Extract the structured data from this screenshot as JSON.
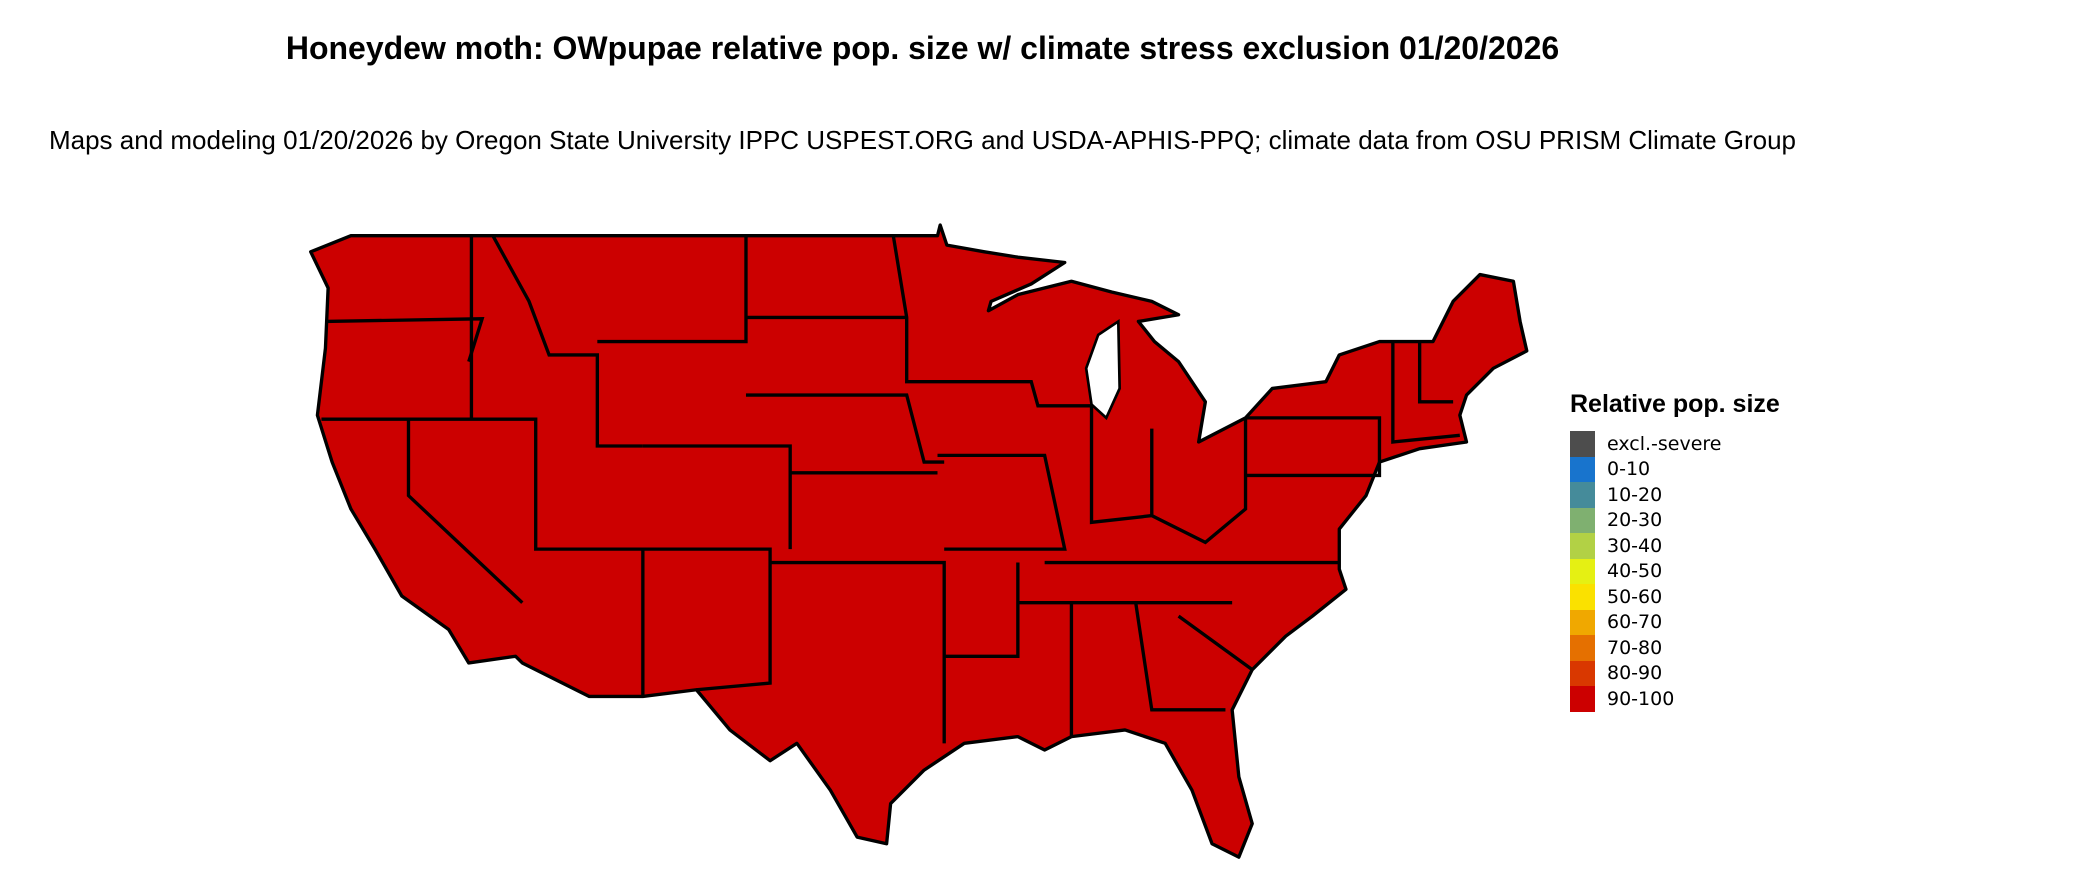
{
  "title": "Honeydew moth: OWpupae relative pop. size w/ climate stress exclusion 01/20/2026",
  "subtitle": "Maps and modeling 01/20/2026 by Oregon State University IPPC USPEST.ORG and USDA-APHIS-PPQ; climate data from OSU PRISM Climate Group",
  "map": {
    "region": "Contiguous United States",
    "fill_category": "90-100",
    "fill_color": "#CC0000",
    "border_color": "#000000"
  },
  "legend": {
    "title": "Relative pop. size",
    "items": [
      {
        "label": "excl.-severe",
        "color": "#4D4D4D"
      },
      {
        "label": "0-10",
        "color": "#1874CD"
      },
      {
        "label": "10-20",
        "color": "#458B9A"
      },
      {
        "label": "20-30",
        "color": "#7FB070"
      },
      {
        "label": "30-40",
        "color": "#B2D145"
      },
      {
        "label": "40-50",
        "color": "#E5F013"
      },
      {
        "label": "50-60",
        "color": "#FAE100"
      },
      {
        "label": "60-70",
        "color": "#F0A800"
      },
      {
        "label": "70-80",
        "color": "#E57000"
      },
      {
        "label": "80-90",
        "color": "#D93800"
      },
      {
        "label": "90-100",
        "color": "#CC0000"
      }
    ]
  }
}
